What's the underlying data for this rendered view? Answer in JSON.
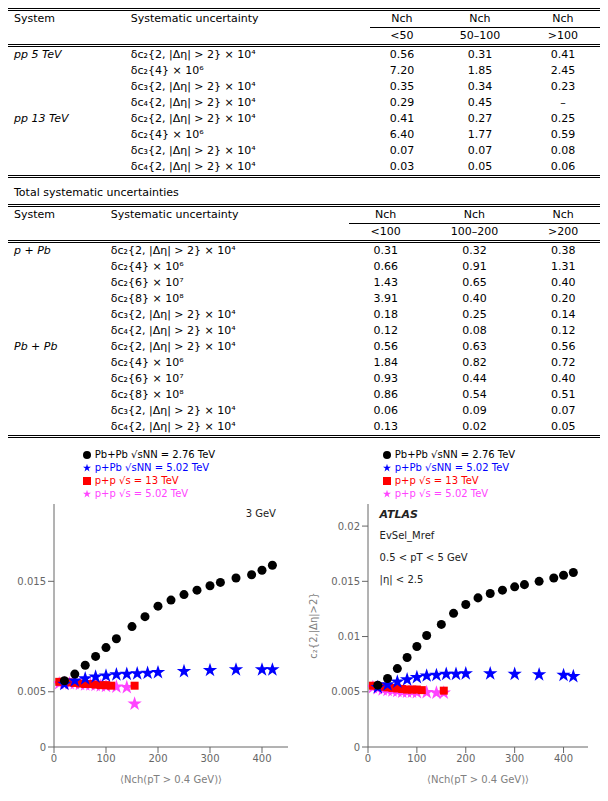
{
  "chart_data": [
    {
      "type": "table",
      "columns": [
        "System",
        "Systematic uncertainty",
        "Nch",
        "Nch",
        "Nch"
      ],
      "subcolumns": [
        "<50",
        "50–100",
        ">100"
      ],
      "rows": [
        [
          "pp 5 TeV",
          "δc₂{2, |Δη| > 2} × 10⁴",
          "0.56",
          "0.31",
          "0.41"
        ],
        [
          null,
          "δc₂{4} × 10⁶",
          "7.20",
          "1.85",
          "2.45"
        ],
        [
          null,
          "δc₃{2, |Δη| > 2} × 10⁴",
          "0.35",
          "0.34",
          "0.23"
        ],
        [
          null,
          "δc₄{2, |Δη| > 2} × 10⁴",
          "0.29",
          "0.45",
          "–"
        ],
        [
          "pp 13 TeV",
          "δc₂{2, |Δη| > 2} × 10⁴",
          "0.41",
          "0.27",
          "0.25"
        ],
        [
          null,
          "δc₂{4} × 10⁶",
          "6.40",
          "1.77",
          "0.59"
        ],
        [
          null,
          "δc₃{2, |Δη| > 2} × 10⁴",
          "0.07",
          "0.07",
          "0.08"
        ],
        [
          null,
          "δc₄{2, |Δη| > 2} × 10⁴",
          "0.03",
          "0.05",
          "0.06"
        ]
      ]
    },
    {
      "type": "table",
      "title": "Total systematic uncertainties",
      "columns": [
        "System",
        "Systematic uncertainty",
        "Nch",
        "Nch",
        "Nch"
      ],
      "subcolumns": [
        "<100",
        "100–200",
        ">200"
      ],
      "rows": [
        [
          "p + Pb",
          "δc₂{2, |Δη| > 2} × 10⁴",
          "0.31",
          "0.32",
          "0.38"
        ],
        [
          null,
          "δc₂{4} × 10⁶",
          "0.66",
          "0.91",
          "1.31"
        ],
        [
          null,
          "δc₂{6} × 10⁷",
          "1.43",
          "0.65",
          "0.40"
        ],
        [
          null,
          "δc₂{8} × 10⁸",
          "3.91",
          "0.40",
          "0.20"
        ],
        [
          null,
          "δc₃{2, |Δη| > 2} × 10⁴",
          "0.18",
          "0.25",
          "0.14"
        ],
        [
          null,
          "δc₄{2, |Δη| > 2} × 10⁴",
          "0.12",
          "0.08",
          "0.12"
        ],
        [
          "Pb + Pb",
          "δc₂{2, |Δη| > 2} × 10⁴",
          "0.56",
          "0.63",
          "0.56"
        ],
        [
          null,
          "δc₂{4} × 10⁶",
          "1.84",
          "0.82",
          "0.72"
        ],
        [
          null,
          "δc₂{6} × 10⁷",
          "0.93",
          "0.44",
          "0.40"
        ],
        [
          null,
          "δc₂{8} × 10⁸",
          "0.86",
          "0.54",
          "0.51"
        ],
        [
          null,
          "δc₃{2, |Δη| > 2} × 10⁴",
          "0.06",
          "0.09",
          "0.07"
        ],
        [
          null,
          "δc₄{2, |Δη| > 2} × 10⁴",
          "0.13",
          "0.02",
          "0.05"
        ]
      ]
    },
    {
      "type": "scatter",
      "xlabel": "⟨Nch(pT > 0.4 GeV)⟩",
      "xlim": [
        0,
        450
      ],
      "xticks": [
        0,
        100,
        200,
        300,
        400
      ],
      "ylim": [
        0,
        0.022
      ],
      "yticks": [
        0,
        0.005,
        0.015
      ],
      "legend": "top",
      "annotations": [
        "3 GeV"
      ],
      "series": [
        {
          "name": "p+p √s = 5.02 TeV",
          "color": "#FF44FF",
          "marker": "star",
          "x": [
            10,
            20,
            30,
            40,
            50,
            60,
            70,
            80,
            90,
            100,
            120,
            140,
            155
          ],
          "values": [
            0.00575,
            0.0058,
            0.00575,
            0.00575,
            0.0057,
            0.00565,
            0.00565,
            0.0056,
            0.00555,
            0.0055,
            0.00545,
            0.0054,
            0.0039
          ]
        },
        {
          "name": "p+p √s = 13 TeV",
          "color": "#FF0000",
          "marker": "square",
          "x": [
            10,
            20,
            30,
            40,
            50,
            60,
            70,
            80,
            90,
            100,
            110,
            155
          ],
          "values": [
            0.0059,
            0.0059,
            0.00585,
            0.0058,
            0.00575,
            0.0057,
            0.0057,
            0.00565,
            0.0056,
            0.0056,
            0.00555,
            0.00555
          ]
        },
        {
          "name": "p+Pb √sNN = 5.02 TeV",
          "color": "#0000FF",
          "marker": "star",
          "x": [
            20,
            40,
            60,
            80,
            100,
            120,
            140,
            160,
            180,
            200,
            250,
            300,
            350,
            400,
            420
          ],
          "values": [
            0.0057,
            0.006,
            0.0062,
            0.00635,
            0.00645,
            0.00655,
            0.0066,
            0.00665,
            0.0067,
            0.00675,
            0.00685,
            0.00695,
            0.007,
            0.007,
            0.007
          ]
        },
        {
          "name": "Pb+Pb √sNN = 2.76 TeV",
          "color": "#000000",
          "marker": "circle",
          "x": [
            20,
            40,
            60,
            80,
            100,
            120,
            150,
            175,
            200,
            225,
            250,
            275,
            300,
            320,
            350,
            380,
            400,
            420
          ],
          "values": [
            0.006,
            0.0066,
            0.0074,
            0.0082,
            0.009,
            0.0098,
            0.0109,
            0.0118,
            0.01275,
            0.0133,
            0.0138,
            0.0142,
            0.0146,
            0.0149,
            0.0153,
            0.0156,
            0.016,
            0.01645
          ]
        }
      ]
    },
    {
      "type": "scatter",
      "xlabel": "⟨Nch(pT > 0.4 GeV)⟩",
      "ylabel": "c₂{2,|Δη|>2}",
      "xlim": [
        0,
        450
      ],
      "xticks": [
        0,
        100,
        200,
        300,
        400
      ],
      "ylim": [
        0,
        0.022
      ],
      "yticks": [
        0,
        0.005,
        0.01,
        0.015,
        0.02
      ],
      "legend": "top",
      "annotations": [
        "ATLAS",
        "EvSel_Mref",
        "0.5 < pT < 5 GeV",
        "|η| < 2.5"
      ],
      "series": [
        {
          "name": "p+p √s = 5.02 TeV",
          "color": "#FF44FF",
          "marker": "star",
          "x": [
            10,
            20,
            30,
            40,
            50,
            60,
            70,
            80,
            90,
            100,
            120,
            140,
            155
          ],
          "values": [
            0.0054,
            0.0053,
            0.0052,
            0.00515,
            0.0051,
            0.00505,
            0.005,
            0.005,
            0.005,
            0.00495,
            0.00495,
            0.0049,
            0.0049
          ]
        },
        {
          "name": "p+p √s = 13 TeV",
          "color": "#FF0000",
          "marker": "square",
          "x": [
            10,
            20,
            30,
            40,
            50,
            60,
            70,
            80,
            90,
            100,
            110,
            155
          ],
          "values": [
            0.00555,
            0.0055,
            0.00545,
            0.0054,
            0.00535,
            0.0053,
            0.00525,
            0.0052,
            0.0052,
            0.0052,
            0.00515,
            0.0051
          ]
        },
        {
          "name": "p+Pb √sNN = 5.02 TeV",
          "color": "#0000FF",
          "marker": "star",
          "x": [
            20,
            40,
            60,
            80,
            100,
            120,
            140,
            160,
            180,
            200,
            250,
            300,
            350,
            400,
            420
          ],
          "values": [
            0.0054,
            0.00565,
            0.0059,
            0.0061,
            0.0063,
            0.00645,
            0.0065,
            0.0066,
            0.0066,
            0.00665,
            0.00665,
            0.0066,
            0.00655,
            0.0065,
            0.0064
          ]
        },
        {
          "name": "Pb+Pb √sNN = 2.76 TeV",
          "color": "#000000",
          "marker": "circle",
          "x": [
            20,
            40,
            60,
            80,
            100,
            120,
            150,
            175,
            200,
            225,
            250,
            275,
            300,
            320,
            350,
            380,
            400,
            420
          ],
          "values": [
            0.0056,
            0.0062,
            0.0071,
            0.0081,
            0.0091,
            0.0101,
            0.0111,
            0.0121,
            0.0129,
            0.0135,
            0.0139,
            0.0142,
            0.0145,
            0.0147,
            0.015,
            0.0153,
            0.01555,
            0.0158
          ]
        }
      ]
    }
  ]
}
